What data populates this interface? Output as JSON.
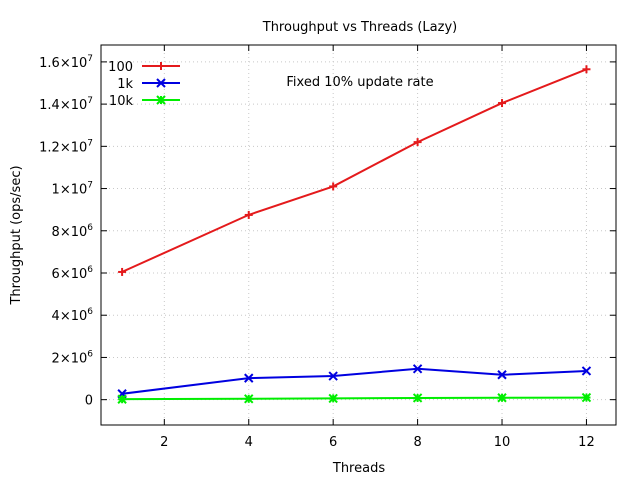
{
  "chart_data": {
    "type": "line",
    "title": "Throughput vs Threads (Lazy)",
    "xlabel": "Threads",
    "ylabel": "Throughput (ops/sec)",
    "annotation": "Fixed 10% update rate",
    "xlim": [
      0.5,
      12.7
    ],
    "ylim": [
      -1200000,
      16800000
    ],
    "x_ticks": [
      {
        "value": 2,
        "label": "2"
      },
      {
        "value": 4,
        "label": "4"
      },
      {
        "value": 6,
        "label": "6"
      },
      {
        "value": 8,
        "label": "8"
      },
      {
        "value": 10,
        "label": "10"
      },
      {
        "value": 12,
        "label": "12"
      }
    ],
    "y_ticks": [
      {
        "value": 0,
        "mantissa": "0",
        "exp": ""
      },
      {
        "value": 2000000,
        "mantissa": "2×10",
        "exp": "6"
      },
      {
        "value": 4000000,
        "mantissa": "4×10",
        "exp": "6"
      },
      {
        "value": 6000000,
        "mantissa": "6×10",
        "exp": "6"
      },
      {
        "value": 8000000,
        "mantissa": "8×10",
        "exp": "6"
      },
      {
        "value": 10000000,
        "mantissa": "1×10",
        "exp": "7"
      },
      {
        "value": 12000000,
        "mantissa": "1.2×10",
        "exp": "7"
      },
      {
        "value": 14000000,
        "mantissa": "1.4×10",
        "exp": "7"
      },
      {
        "value": 16000000,
        "mantissa": "1.6×10",
        "exp": "7"
      }
    ],
    "grid": true,
    "legend_position": "top-left",
    "x": [
      1,
      4,
      6,
      8,
      10,
      12
    ],
    "series": [
      {
        "name": "100",
        "color": "#e41a1c",
        "marker": "plus",
        "values": [
          6050000,
          8750000,
          10100000,
          12200000,
          14050000,
          15650000
        ]
      },
      {
        "name": "1k",
        "color": "#0000e0",
        "marker": "cross",
        "values": [
          280000,
          1020000,
          1120000,
          1460000,
          1180000,
          1360000
        ]
      },
      {
        "name": "10k",
        "color": "#00ee00",
        "marker": "star",
        "values": [
          20000,
          40000,
          60000,
          80000,
          90000,
          100000
        ]
      }
    ]
  }
}
